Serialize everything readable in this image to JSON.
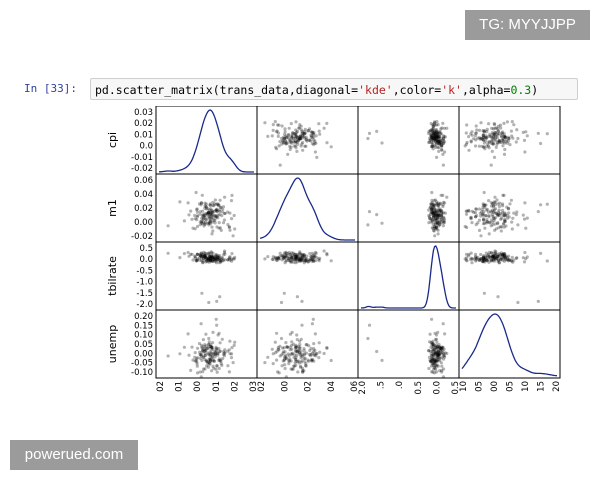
{
  "watermark_top": "TG: MYYJJPP",
  "watermark_bottom": "powerued.com",
  "cell": {
    "prompt": "In [33]:",
    "code_name": "pd.scatter_matrix(trans_data,diagonal=",
    "code_str1": "'kde'",
    "code_mid": ",color=",
    "code_str2": "'k'",
    "code_tail": ",alpha=",
    "code_num": "0.3",
    "code_end": ")"
  },
  "chart_data": {
    "type": "scatter",
    "variables": [
      "cpi",
      "m1",
      "tbilrate",
      "unemp"
    ],
    "ranges": {
      "cpi": [
        -0.02,
        0.035
      ],
      "m1": [
        -0.02,
        0.065
      ],
      "tbilrate": [
        -2.3,
        0.6
      ],
      "unemp": [
        -0.13,
        0.22
      ]
    },
    "yticks": {
      "cpi": [
        "0.03",
        "0.02",
        "0.01",
        "0.0",
        "-0.01",
        "-0.02"
      ],
      "m1": [
        "0.06",
        "0.04",
        "0.02",
        "0.00",
        "-0.02"
      ],
      "tbilrate": [
        "0.5",
        "0.0",
        "-0.5",
        "-1.0",
        "-1.5",
        "-2.0"
      ],
      "unemp": [
        "0.20",
        "0.15",
        "0.10",
        "0.05",
        "0.00",
        "-0.05",
        "-0.10"
      ]
    },
    "xticks": {
      "cpi": [
        "02",
        "01",
        "00",
        "01",
        "02",
        "03"
      ],
      "m1": [
        "02",
        "00",
        "02",
        "04",
        "06"
      ],
      "tbilrate": [
        "2.0",
        ".5",
        ".0",
        "0.5",
        "0.0",
        "0.5"
      ],
      "unemp": [
        "10",
        "05",
        "00",
        "05",
        "10",
        "15",
        "20"
      ]
    },
    "diagonal": "kde",
    "color": "k",
    "alpha": 0.3,
    "kde_color": "#1a2a8a"
  }
}
